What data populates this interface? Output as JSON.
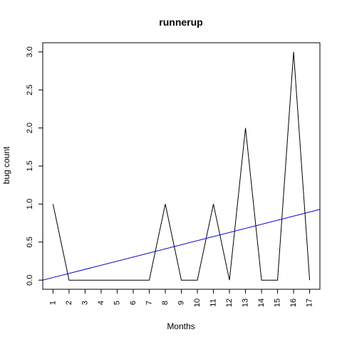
{
  "chart_data": {
    "type": "line",
    "title": "runnerup",
    "xlabel": "Months",
    "ylabel": "bug count",
    "x": [
      1,
      2,
      3,
      4,
      5,
      6,
      7,
      8,
      9,
      10,
      11,
      12,
      13,
      14,
      15,
      16,
      17
    ],
    "x_tick_labels": [
      "1",
      "2",
      "3",
      "4",
      "5",
      "6",
      "7",
      "8",
      "9",
      "10",
      "11",
      "12",
      "13",
      "14",
      "15",
      "16",
      "17"
    ],
    "y_tick_labels": [
      "0.0",
      "0.5",
      "1.0",
      "1.5",
      "2.0",
      "2.5",
      "3.0"
    ],
    "y_ticks": [
      0,
      0.5,
      1,
      1.5,
      2,
      2.5,
      3
    ],
    "xlim": [
      0.36,
      17.64
    ],
    "ylim": [
      -0.12,
      3.12
    ],
    "grid": false,
    "series": [
      {
        "values": [
          1,
          0,
          0,
          0,
          0,
          0,
          0,
          1,
          0,
          0,
          1,
          0,
          2,
          0,
          0,
          3,
          0
        ],
        "color": "#000000"
      }
    ],
    "trend_line": {
      "color": "#0000cc",
      "x": [
        0.36,
        17.64
      ],
      "y": [
        0.0,
        0.93
      ]
    }
  }
}
